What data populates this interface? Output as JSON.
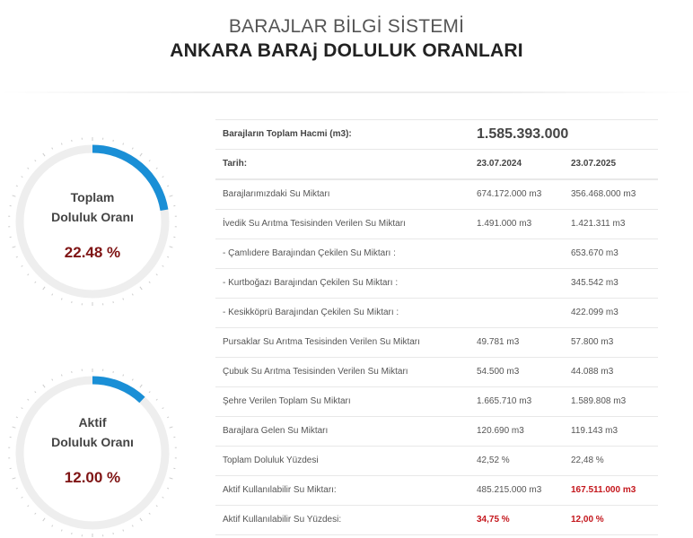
{
  "header": {
    "subtitle": "BARAJLAR BİLGİ SİSTEMİ",
    "title": "ANKARA BARAj DOLULUK ORANLARI"
  },
  "gauges": [
    {
      "label_line1": "Toplam",
      "label_line2": "Doluluk Oranı",
      "value_text": "22.48 %",
      "percent": 22.48
    },
    {
      "label_line1": "Aktif",
      "label_line2": "Doluluk Oranı",
      "value_text": "12.00 %",
      "percent": 12.0
    }
  ],
  "colors": {
    "gauge_fill": "#1a8fd6",
    "gauge_track": "#eeeeee",
    "value_red": "#7f1414",
    "highlight_red": "#c4161c"
  },
  "table": {
    "total_volume_label": "Barajların Toplam Hacmi (m3):",
    "total_volume_value": "1.585.393.000",
    "date_label": "Tarih:",
    "date_1": "23.07.2024",
    "date_2": "23.07.2025",
    "rows": [
      {
        "label": "Barajlarımızdaki Su Miktarı",
        "v1": "674.172.000 m3",
        "v2": "356.468.000 m3"
      },
      {
        "label": "İvedik Su Arıtma Tesisinden Verilen Su Miktarı",
        "v1": "1.491.000 m3",
        "v2": "1.421.311 m3"
      },
      {
        "label": "- Çamlıdere Barajından Çekilen Su Miktarı :",
        "v1": "",
        "v2": "653.670 m3"
      },
      {
        "label": "- Kurtboğazı Barajından Çekilen Su Miktarı :",
        "v1": "",
        "v2": "345.542 m3"
      },
      {
        "label": "- Kesikköprü Barajından Çekilen Su Miktarı :",
        "v1": "",
        "v2": "422.099 m3"
      },
      {
        "label": "Pursaklar Su Arıtma Tesisinden Verilen Su Miktarı",
        "v1": "49.781 m3",
        "v2": "57.800 m3"
      },
      {
        "label": "Çubuk Su Arıtma Tesisinden Verilen Su Miktarı",
        "v1": "54.500 m3",
        "v2": "44.088 m3"
      },
      {
        "label": "Şehre Verilen Toplam Su Miktarı",
        "v1": "1.665.710 m3",
        "v2": "1.589.808 m3"
      },
      {
        "label": "Barajlara Gelen Su Miktarı",
        "v1": "120.690 m3",
        "v2": "119.143 m3"
      },
      {
        "label": "Toplam Doluluk Yüzdesi",
        "v1": "42,52 %",
        "v2": "22,48 %"
      },
      {
        "label": "Aktif Kullanılabilir Su Miktarı:",
        "v1": "485.215.000 m3",
        "v2": "167.511.000 m3"
      },
      {
        "label": "Aktif Kullanılabilir Su Yüzdesi:",
        "v1": "34,75 %",
        "v2": "12,00 %"
      }
    ]
  }
}
